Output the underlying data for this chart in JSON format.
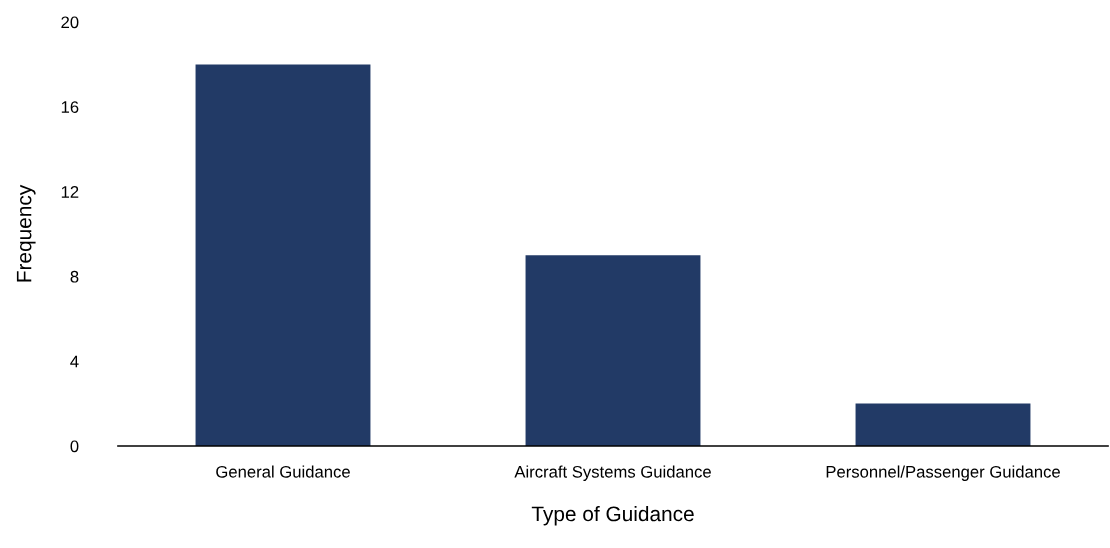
{
  "chart_data": {
    "type": "bar",
    "xlabel": "Type of Guidance",
    "ylabel": "Frequency",
    "categories": [
      "General Guidance",
      "Aircraft Systems Guidance",
      "Personnel/Passenger Guidance"
    ],
    "values": [
      18,
      9,
      2
    ],
    "color": "#223a66",
    "ylim": [
      0,
      20
    ],
    "yticks": [
      0,
      4,
      8,
      12,
      16,
      20
    ],
    "grid": false,
    "legend": false
  }
}
